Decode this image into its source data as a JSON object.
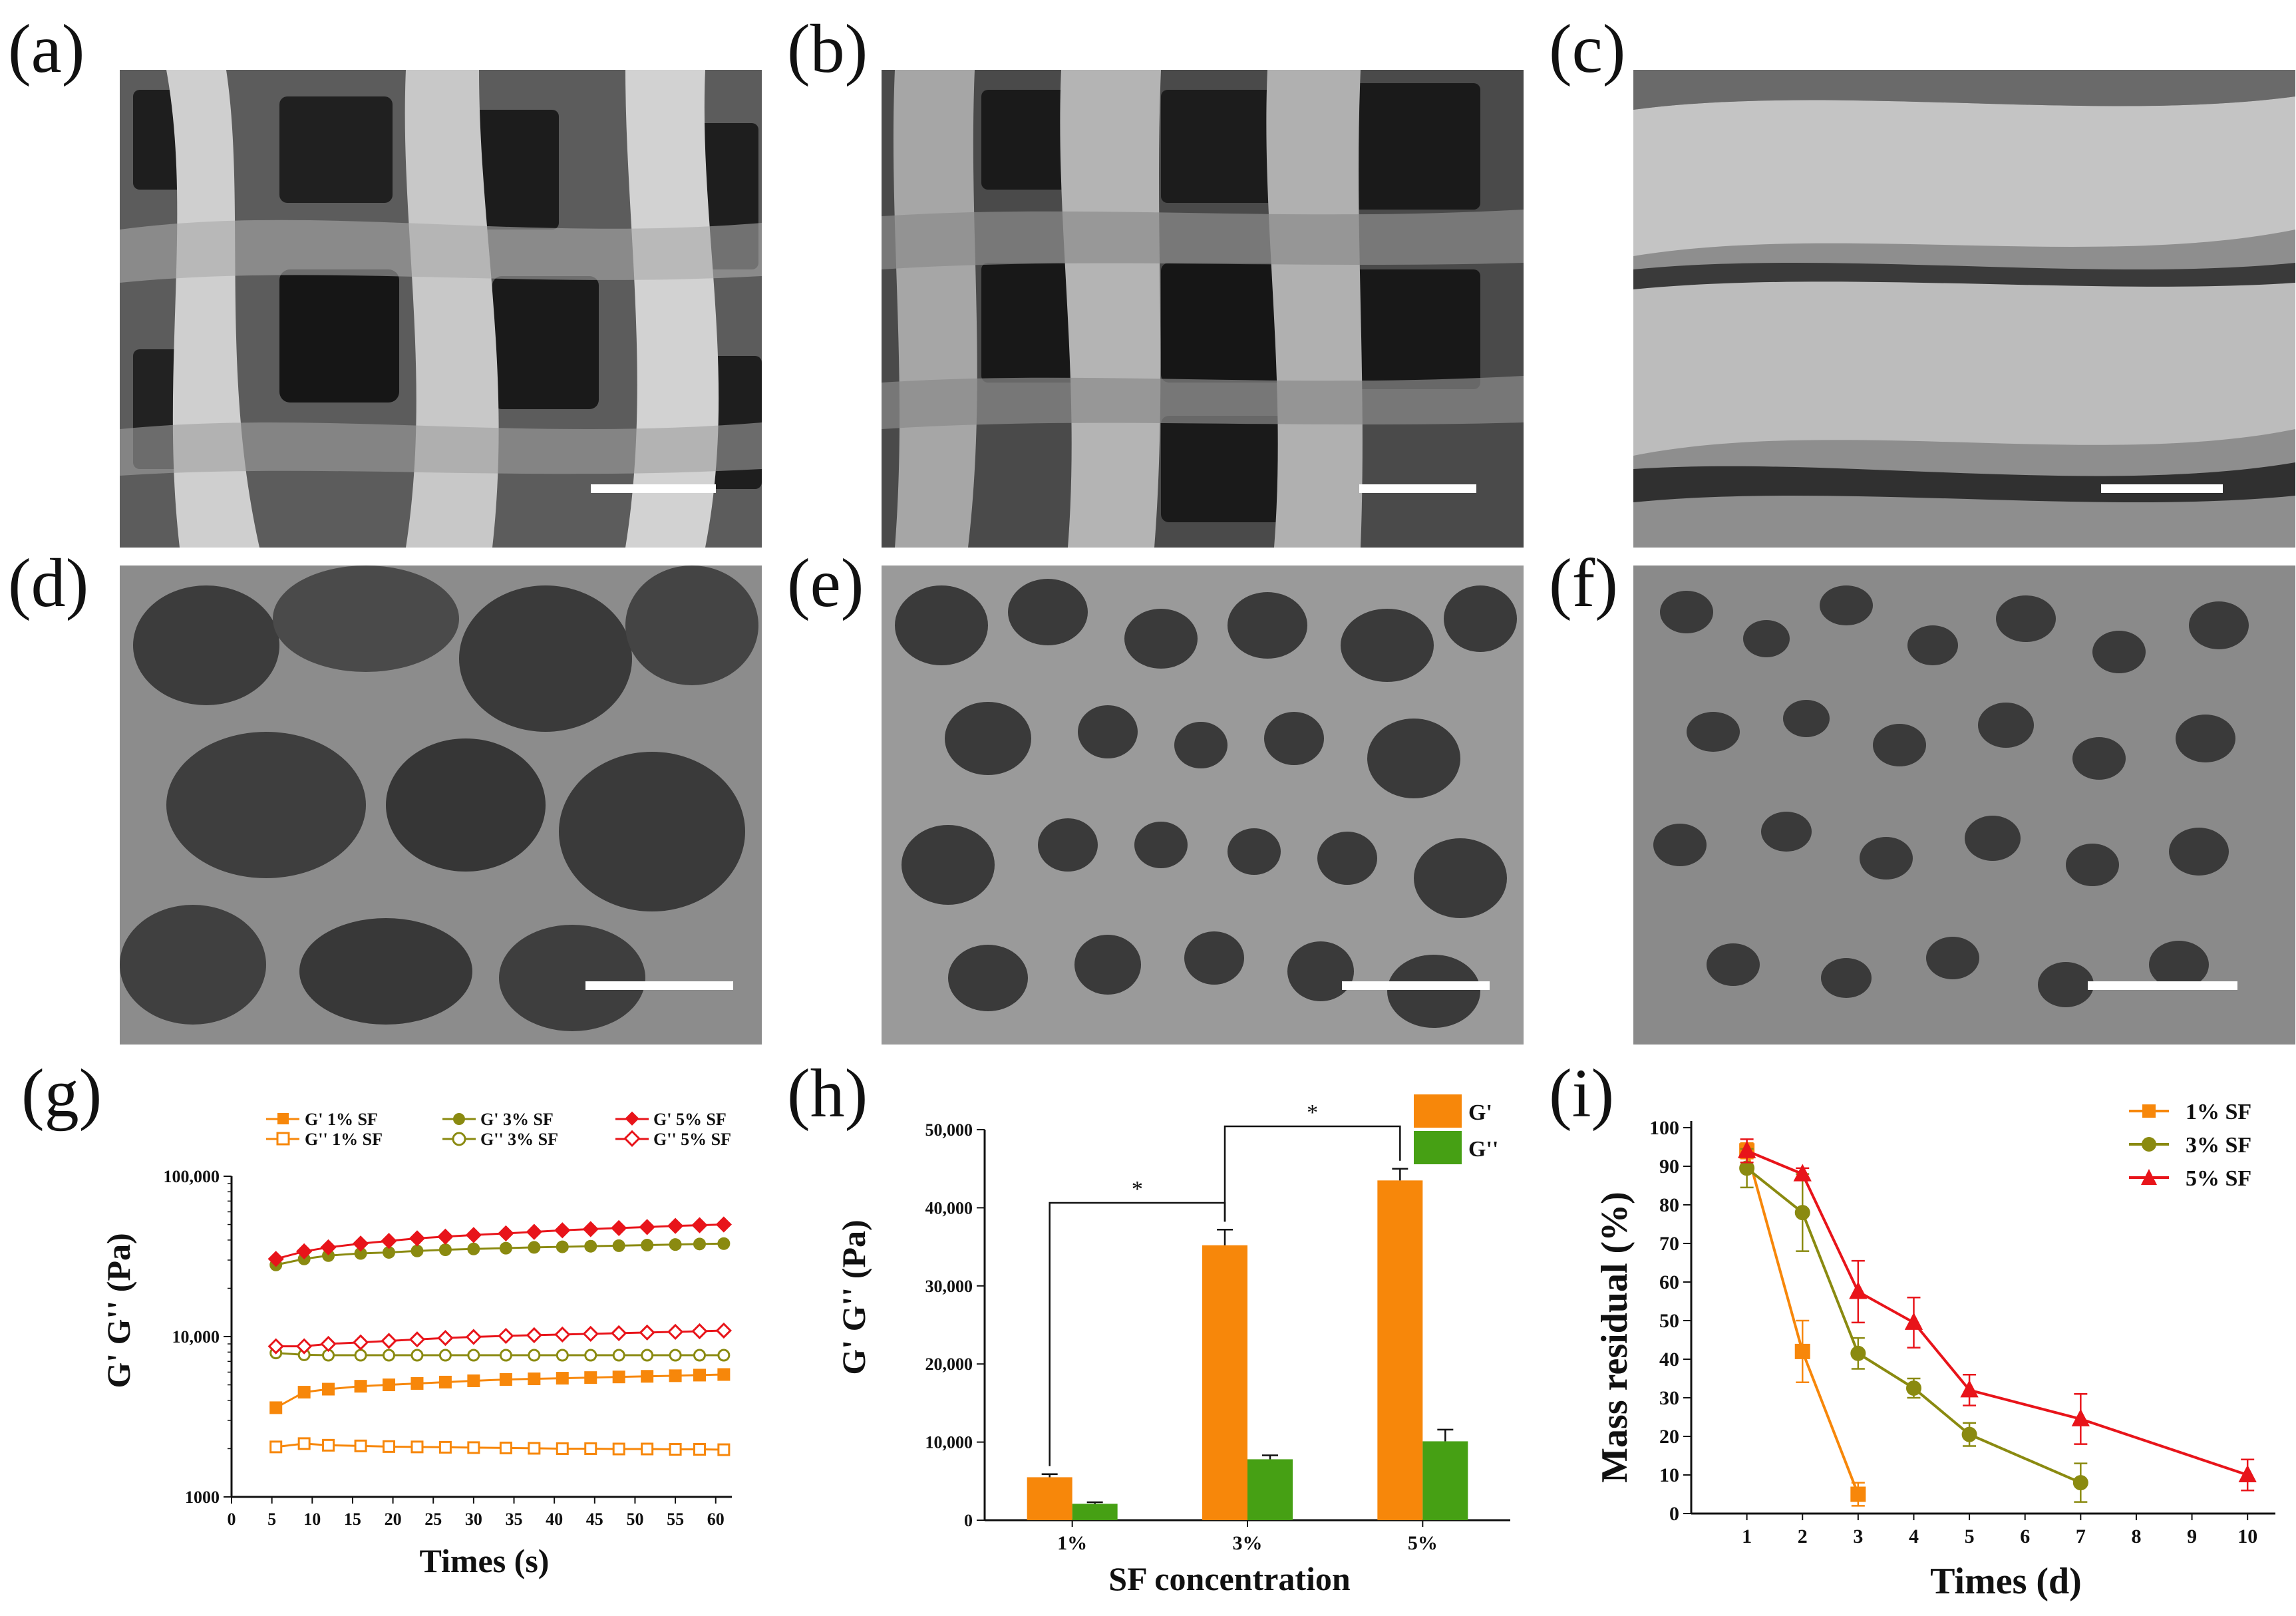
{
  "panels": {
    "a": "(a)",
    "b": "(b)",
    "c": "(c)",
    "d": "(d)",
    "e": "(e)",
    "f": "(f)",
    "g": "(g)",
    "h": "(h)",
    "i": "(i)"
  },
  "colors": {
    "sf1": "#f7870a",
    "sf3": "#8a8a10",
    "sf5": "#e8141a",
    "Gp_bar": "#f7870a",
    "Gpp_bar": "#46a014"
  },
  "chart_data": [
    {
      "id": "g",
      "type": "line",
      "xlabel": "Times (s)",
      "ylabel": "G' G'' (Pa)",
      "yscale": "log",
      "xlim": [
        0,
        62
      ],
      "ylim": [
        1000,
        100000
      ],
      "x_ticks": [
        "0",
        "5",
        "10",
        "15",
        "20",
        "25",
        "30",
        "35",
        "40",
        "45",
        "50",
        "55",
        "60"
      ],
      "y_ticks": [
        "1000",
        "10,000",
        "100,000"
      ],
      "x": [
        5.5,
        9,
        12,
        16,
        19.5,
        23,
        26.5,
        30,
        34,
        37.5,
        41,
        44.5,
        48,
        51.5,
        55,
        58,
        61
      ],
      "series": [
        {
          "name": "G'  1% SF",
          "marker": "filled-square",
          "color": "#f7870a",
          "values": [
            3600,
            4500,
            4700,
            4900,
            5000,
            5100,
            5200,
            5300,
            5400,
            5450,
            5500,
            5550,
            5600,
            5650,
            5700,
            5750,
            5800
          ]
        },
        {
          "name": "G''  1% SF",
          "marker": "open-square",
          "color": "#f7870a",
          "values": [
            2050,
            2150,
            2100,
            2080,
            2060,
            2050,
            2040,
            2030,
            2020,
            2010,
            2000,
            2000,
            1990,
            1990,
            1980,
            1980,
            1970
          ]
        },
        {
          "name": "G'  3% SF",
          "marker": "filled-circle",
          "color": "#8a8a10",
          "values": [
            28000,
            30500,
            32000,
            33000,
            33500,
            34200,
            34800,
            35200,
            35600,
            36000,
            36300,
            36600,
            36900,
            37200,
            37500,
            37800,
            38000
          ]
        },
        {
          "name": "G''  3% SF",
          "marker": "open-circle",
          "color": "#8a8a10",
          "values": [
            7900,
            7700,
            7650,
            7650,
            7650,
            7650,
            7650,
            7650,
            7650,
            7650,
            7650,
            7650,
            7650,
            7650,
            7650,
            7650,
            7650
          ]
        },
        {
          "name": "G'  5% SF",
          "marker": "filled-diamond",
          "color": "#e8141a",
          "values": [
            30500,
            34000,
            36000,
            38000,
            39500,
            41000,
            42000,
            43000,
            44000,
            45000,
            46000,
            46800,
            47500,
            48200,
            49000,
            49500,
            50000
          ]
        },
        {
          "name": "G''  5% SF",
          "marker": "open-diamond",
          "color": "#e8141a",
          "values": [
            8700,
            8700,
            9000,
            9200,
            9400,
            9600,
            9800,
            9950,
            10100,
            10200,
            10300,
            10400,
            10500,
            10600,
            10700,
            10800,
            10900
          ]
        }
      ]
    },
    {
      "id": "h",
      "type": "bar",
      "xlabel": "SF concentration",
      "ylabel": "G' G'' (Pa)",
      "ylim": [
        0,
        50000
      ],
      "y_ticks": [
        "0",
        "10,000",
        "20,000",
        "30,000",
        "40,000",
        "50,000"
      ],
      "categories": [
        "1%",
        "3%",
        "5%"
      ],
      "series": [
        {
          "name": "G'",
          "color": "#f7870a",
          "values": [
            5500,
            35200,
            43500
          ],
          "errors": [
            400,
            2000,
            1500
          ]
        },
        {
          "name": "G''",
          "color": "#46a014",
          "values": [
            2100,
            7800,
            10100
          ],
          "errors": [
            200,
            500,
            1500
          ]
        }
      ],
      "significance": [
        {
          "from": "1%",
          "to": "3%",
          "label": "*"
        },
        {
          "from": "3%",
          "to": "5%",
          "label": "*"
        }
      ]
    },
    {
      "id": "i",
      "type": "line",
      "xlabel": "Times (d)",
      "ylabel": "Mass residual (%)",
      "xlim": [
        0,
        10.5
      ],
      "ylim": [
        0,
        100
      ],
      "x_ticks": [
        "1",
        "2",
        "3",
        "4",
        "5",
        "6",
        "7",
        "8",
        "9",
        "10"
      ],
      "y_ticks": [
        "0",
        "10",
        "20",
        "30",
        "40",
        "50",
        "60",
        "70",
        "80",
        "90",
        "100"
      ],
      "series": [
        {
          "name": "1% SF",
          "marker": "square",
          "color": "#f7870a",
          "x": [
            1,
            2,
            3
          ],
          "values": [
            94,
            42,
            5
          ],
          "errors": [
            2,
            8,
            3
          ]
        },
        {
          "name": "3% SF",
          "marker": "circle",
          "color": "#8a8a10",
          "x": [
            1,
            2,
            3,
            4,
            5,
            7
          ],
          "values": [
            89.5,
            78,
            41.5,
            32.5,
            20.5,
            8
          ],
          "errors": [
            5,
            10,
            4,
            2.5,
            3,
            5
          ]
        },
        {
          "name": "5% SF",
          "marker": "triangle",
          "color": "#e8141a",
          "x": [
            1,
            2,
            3,
            4,
            5,
            7,
            10
          ],
          "values": [
            94,
            88,
            57.5,
            49.5,
            32,
            24.5,
            10
          ],
          "errors": [
            3,
            1.5,
            8,
            6.5,
            4,
            6.5,
            4
          ]
        }
      ]
    }
  ]
}
